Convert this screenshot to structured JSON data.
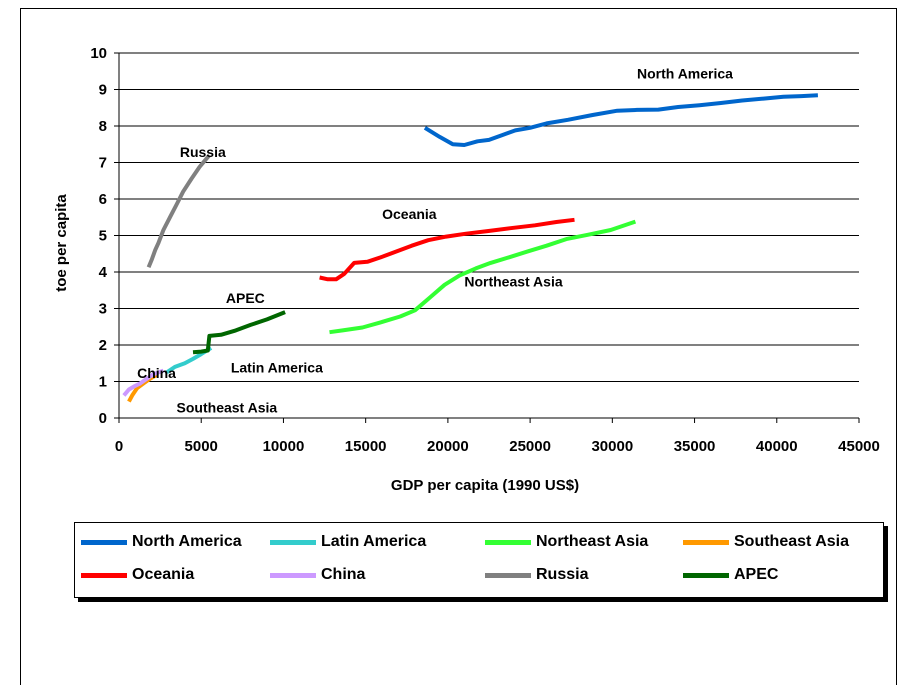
{
  "chart_data": {
    "type": "line",
    "xlabel": "GDP per capita (1990 US$)",
    "ylabel": "toe per capita",
    "xlim": [
      0,
      45000
    ],
    "ylim": [
      0,
      10
    ],
    "x_ticks": [
      "0",
      "5000",
      "10000",
      "15000",
      "20000",
      "25000",
      "30000",
      "35000",
      "40000",
      "45000"
    ],
    "y_ticks": [
      "0",
      "1",
      "2",
      "3",
      "4",
      "5",
      "6",
      "7",
      "8",
      "9",
      "10"
    ],
    "grid": "horizontal",
    "legend_position": "bottom",
    "series": [
      {
        "name": "North America",
        "color": "#0066CC",
        "label_anchor": [
          31500,
          9.3
        ],
        "points": [
          [
            18600,
            7.95
          ],
          [
            19500,
            7.7
          ],
          [
            20300,
            7.5
          ],
          [
            21000,
            7.48
          ],
          [
            21800,
            7.58
          ],
          [
            22500,
            7.62
          ],
          [
            23300,
            7.75
          ],
          [
            24100,
            7.88
          ],
          [
            25000,
            7.95
          ],
          [
            26000,
            8.07
          ],
          [
            27300,
            8.17
          ],
          [
            28800,
            8.3
          ],
          [
            30300,
            8.42
          ],
          [
            31500,
            8.44
          ],
          [
            32800,
            8.45
          ],
          [
            34000,
            8.52
          ],
          [
            35300,
            8.57
          ],
          [
            36600,
            8.63
          ],
          [
            37900,
            8.7
          ],
          [
            39200,
            8.75
          ],
          [
            40400,
            8.8
          ],
          [
            41500,
            8.82
          ],
          [
            42500,
            8.84
          ]
        ]
      },
      {
        "name": "Latin America",
        "color": "#33CCCC",
        "label_anchor": [
          6800,
          1.25
        ],
        "points": [
          [
            2900,
            1.25
          ],
          [
            3400,
            1.4
          ],
          [
            4000,
            1.5
          ],
          [
            4500,
            1.62
          ],
          [
            5000,
            1.75
          ],
          [
            5600,
            1.92
          ]
        ]
      },
      {
        "name": "Northeast Asia",
        "color": "#33FF33",
        "label_anchor": [
          21000,
          3.6
        ],
        "points": [
          [
            12800,
            2.35
          ],
          [
            13600,
            2.4
          ],
          [
            14800,
            2.48
          ],
          [
            15900,
            2.62
          ],
          [
            17100,
            2.78
          ],
          [
            18000,
            2.95
          ],
          [
            18900,
            3.3
          ],
          [
            19800,
            3.65
          ],
          [
            20700,
            3.9
          ],
          [
            21700,
            4.1
          ],
          [
            22600,
            4.25
          ],
          [
            23700,
            4.4
          ],
          [
            24900,
            4.57
          ],
          [
            26000,
            4.72
          ],
          [
            27200,
            4.9
          ],
          [
            28500,
            5.02
          ],
          [
            29900,
            5.15
          ],
          [
            31400,
            5.38
          ]
        ]
      },
      {
        "name": "Southeast Asia",
        "color": "#FF9900",
        "label_anchor": [
          3500,
          0.15
        ],
        "points": [
          [
            600,
            0.45
          ],
          [
            800,
            0.62
          ],
          [
            1100,
            0.82
          ],
          [
            1500,
            0.95
          ],
          [
            1900,
            1.08
          ],
          [
            2300,
            1.18
          ]
        ]
      },
      {
        "name": "Oceania",
        "color": "#FF0000",
        "label_anchor": [
          16000,
          5.45
        ],
        "points": [
          [
            12200,
            3.85
          ],
          [
            12700,
            3.8
          ],
          [
            13200,
            3.8
          ],
          [
            13700,
            3.95
          ],
          [
            14300,
            4.25
          ],
          [
            15100,
            4.28
          ],
          [
            15900,
            4.4
          ],
          [
            16800,
            4.55
          ],
          [
            17800,
            4.72
          ],
          [
            18800,
            4.87
          ],
          [
            19900,
            4.97
          ],
          [
            21100,
            5.05
          ],
          [
            22400,
            5.12
          ],
          [
            23800,
            5.2
          ],
          [
            25300,
            5.28
          ],
          [
            26600,
            5.37
          ],
          [
            27700,
            5.43
          ]
        ]
      },
      {
        "name": "China",
        "color": "#CC99FF",
        "label_anchor": [
          1100,
          1.1
        ],
        "points": [
          [
            300,
            0.62
          ],
          [
            600,
            0.78
          ],
          [
            900,
            0.86
          ],
          [
            1300,
            0.95
          ],
          [
            1700,
            1.08
          ],
          [
            2100,
            1.2
          ],
          [
            2700,
            1.3
          ]
        ]
      },
      {
        "name": "Russia",
        "color": "#808080",
        "label_anchor": [
          3700,
          7.15
        ],
        "points": [
          [
            1800,
            4.13
          ],
          [
            2000,
            4.35
          ],
          [
            2200,
            4.6
          ],
          [
            2400,
            4.8
          ],
          [
            2700,
            5.15
          ],
          [
            3100,
            5.5
          ],
          [
            3500,
            5.85
          ],
          [
            3900,
            6.2
          ],
          [
            4400,
            6.55
          ],
          [
            4900,
            6.88
          ],
          [
            5500,
            7.2
          ]
        ]
      },
      {
        "name": "APEC",
        "color": "#006600",
        "label_anchor": [
          6500,
          3.15
        ],
        "points": [
          [
            4500,
            1.8
          ],
          [
            5000,
            1.82
          ],
          [
            5400,
            1.85
          ],
          [
            5500,
            2.25
          ],
          [
            6200,
            2.28
          ],
          [
            7100,
            2.4
          ],
          [
            8000,
            2.55
          ],
          [
            9000,
            2.7
          ],
          [
            10100,
            2.9
          ]
        ]
      }
    ]
  }
}
